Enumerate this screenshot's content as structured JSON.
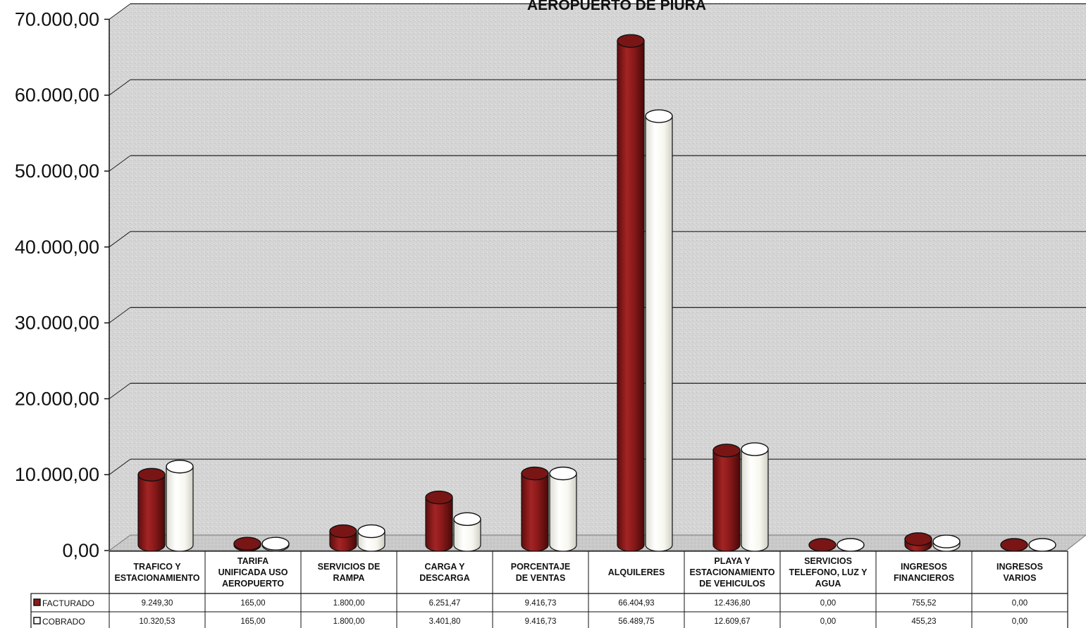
{
  "chart_data": {
    "type": "bar",
    "title": "AEROPUERTO DE PIURA",
    "ylim": [
      0,
      70000
    ],
    "yticks": [
      0,
      10000,
      20000,
      30000,
      40000,
      50000,
      60000,
      70000
    ],
    "ytick_labels": [
      "0,00",
      "10.000,00",
      "20.000,00",
      "30.000,00",
      "40.000,00",
      "50.000,00",
      "60.000,00",
      "70.000,00"
    ],
    "grid": true,
    "legend": "data-table-left",
    "categories": [
      [
        "TRAFICO Y",
        "ESTACIONAMIENTO"
      ],
      [
        "TARIFA",
        "UNIFICADA USO",
        "AEROPUERTO"
      ],
      [
        "SERVICIOS DE",
        "RAMPA"
      ],
      [
        "CARGA Y",
        "DESCARGA"
      ],
      [
        "PORCENTAJE",
        "DE VENTAS"
      ],
      [
        "ALQUILERES"
      ],
      [
        "PLAYA Y",
        "ESTACIONAMIENTO",
        "DE VEHICULOS"
      ],
      [
        "SERVICIOS",
        "TELEFONO, LUZ Y",
        "AGUA"
      ],
      [
        "INGRESOS",
        "FINANCIEROS"
      ],
      [
        "INGRESOS",
        "VARIOS"
      ]
    ],
    "series": [
      {
        "name": "FACTURADO",
        "color": "#8b1a1a",
        "values": [
          9249.3,
          165.0,
          1800.0,
          6251.47,
          9416.73,
          66404.93,
          12436.8,
          0.0,
          755.52,
          0.0
        ],
        "labels": [
          "9.249,30",
          "165,00",
          "1.800,00",
          "6.251,47",
          "9.416,73",
          "66.404,93",
          "12.436,80",
          "0,00",
          "755,52",
          "0,00"
        ]
      },
      {
        "name": "COBRADO",
        "color": "#fbfaf2",
        "values": [
          10320.53,
          165.0,
          1800.0,
          3401.8,
          9416.73,
          56489.75,
          12609.67,
          0.0,
          455.23,
          0.0
        ],
        "labels": [
          "10.320,53",
          "165,00",
          "1.800,00",
          "3.401,80",
          "9.416,73",
          "56.489,75",
          "12.609,67",
          "0,00",
          "455,23",
          "0,00"
        ]
      }
    ]
  }
}
